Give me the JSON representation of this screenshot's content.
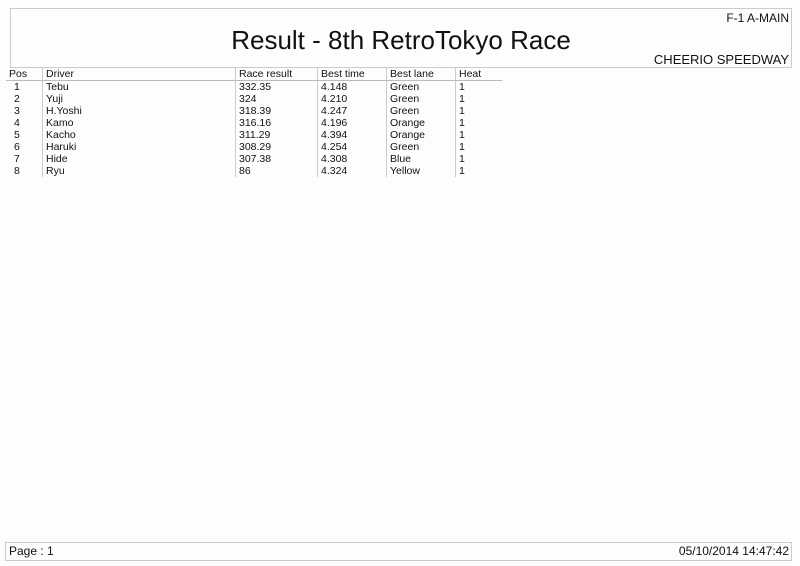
{
  "header": {
    "category": "F-1 A-MAIN",
    "title": "Result - 8th RetroTokyo Race",
    "venue": "CHEERIO SPEEDWAY"
  },
  "table": {
    "columns": [
      "Pos",
      "Driver",
      "Race result",
      "Best time",
      "Best lane",
      "Heat"
    ],
    "rows": [
      [
        "1",
        "Tebu",
        "332.35",
        "4.148",
        "Green",
        "1"
      ],
      [
        "2",
        "Yuji",
        "324",
        "4.210",
        "Green",
        "1"
      ],
      [
        "3",
        "H.Yoshi",
        "318.39",
        "4.247",
        "Green",
        "1"
      ],
      [
        "4",
        "Kamo",
        "316.16",
        "4.196",
        "Orange",
        "1"
      ],
      [
        "5",
        "Kacho",
        "311.29",
        "4.394",
        "Orange",
        "1"
      ],
      [
        "6",
        "Haruki",
        "308.29",
        "4.254",
        "Green",
        "1"
      ],
      [
        "7",
        "Hide",
        "307.38",
        "4.308",
        "Blue",
        "1"
      ],
      [
        "8",
        "Ryu",
        " 86",
        "4.324",
        "Yellow",
        "1"
      ]
    ]
  },
  "footer": {
    "page": "Page : 1",
    "datetime": "05/10/2014  14:47:42"
  }
}
